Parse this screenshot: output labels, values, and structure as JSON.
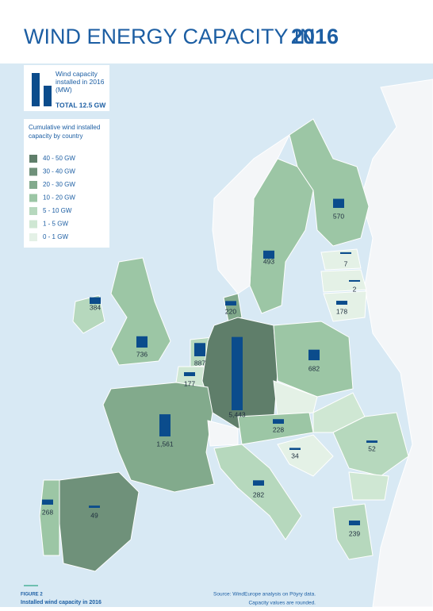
{
  "title": "WIND ENERGY CAPACITY IN",
  "title_year": "2016",
  "bar_legend": {
    "label": "Wind capacity installed in 2016 (MW)",
    "total": "TOTAL 12.5 GW",
    "color": "#0b4c8c"
  },
  "class_legend": {
    "title": "Cumulative wind installed capacity by country",
    "items": [
      {
        "label": "40 - 50 GW",
        "color": "#5f7e6a"
      },
      {
        "label": "30 - 40 GW",
        "color": "#6f917a"
      },
      {
        "label": "20 - 30 GW",
        "color": "#82aa8c"
      },
      {
        "label": "10 - 20 GW",
        "color": "#9cc6a5"
      },
      {
        "label": "5 - 10 GW",
        "color": "#b6d8bd"
      },
      {
        "label": "1 - 5 GW",
        "color": "#cfe7d3"
      },
      {
        "label": "0 - 1 GW",
        "color": "#e4f1e6"
      }
    ]
  },
  "bars": {
    "values": [
      570,
      493,
      7,
      2,
      178,
      220,
      384,
      736,
      887,
      177,
      5443,
      682,
      1561,
      228,
      34,
      52,
      282,
      268,
      49,
      239
    ],
    "value_labels": [
      "570",
      "493",
      "7",
      "2",
      "178",
      "220",
      "384",
      "736",
      "887",
      "177",
      "5,443",
      "682",
      "1,561",
      "228",
      "34",
      "52",
      "282",
      "268",
      "49",
      "239"
    ]
  },
  "footer": {
    "figure": "FIGURE 2",
    "caption": "Installed wind capacity in 2016",
    "source": "Source: WindEurope analysis on Pöyry data.",
    "note": "Capacity values are rounded."
  }
}
